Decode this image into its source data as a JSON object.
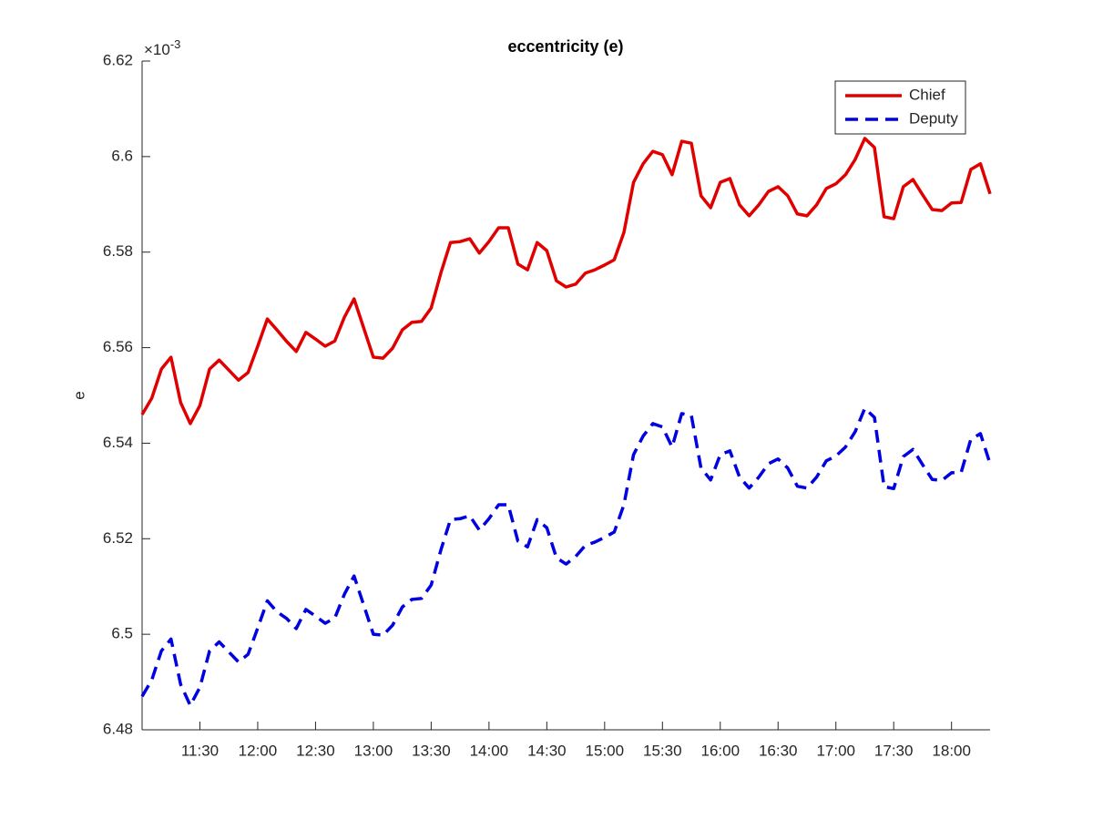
{
  "chart_data": {
    "type": "line",
    "title": "eccentricity (e)",
    "ylabel": "e",
    "y_multiplier": {
      "base": "×10",
      "exponent": "-3"
    },
    "xlim": [
      "11:00",
      "18:20"
    ],
    "xticks": [
      "11:30",
      "12:00",
      "12:30",
      "13:00",
      "13:30",
      "14:00",
      "14:30",
      "15:00",
      "15:30",
      "16:00",
      "16:30",
      "17:00",
      "17:30",
      "18:00"
    ],
    "ylim": [
      6.48,
      6.62
    ],
    "yticks": [
      6.48,
      6.5,
      6.52,
      6.54,
      6.56,
      6.58,
      6.6,
      6.62
    ],
    "grid": false,
    "legend": "northeast",
    "x": [
      "11:00",
      "11:05",
      "11:10",
      "11:15",
      "11:20",
      "11:25",
      "11:30",
      "11:35",
      "11:40",
      "11:45",
      "11:50",
      "11:55",
      "12:00",
      "12:05",
      "12:10",
      "12:15",
      "12:20",
      "12:25",
      "12:30",
      "12:35",
      "12:40",
      "12:45",
      "12:50",
      "12:55",
      "13:00",
      "13:05",
      "13:10",
      "13:15",
      "13:20",
      "13:25",
      "13:30",
      "13:35",
      "13:40",
      "13:45",
      "13:50",
      "13:55",
      "14:00",
      "14:05",
      "14:10",
      "14:15",
      "14:20",
      "14:25",
      "14:30",
      "14:35",
      "14:40",
      "14:45",
      "14:50",
      "14:55",
      "15:00",
      "15:05",
      "15:10",
      "15:15",
      "15:20",
      "15:25",
      "15:30",
      "15:35",
      "15:40",
      "15:45",
      "15:50",
      "15:55",
      "16:00",
      "16:05",
      "16:10",
      "16:15",
      "16:20",
      "16:25",
      "16:30",
      "16:35",
      "16:40",
      "16:45",
      "16:50",
      "16:55",
      "17:00",
      "17:05",
      "17:10",
      "17:15",
      "17:20",
      "17:25",
      "17:30",
      "17:35",
      "17:40",
      "17:45",
      "17:50",
      "17:55",
      "18:00",
      "18:05",
      "18:10",
      "18:15",
      "18:20"
    ],
    "series": [
      {
        "name": "Chief",
        "color": "#e00000",
        "linestyle": "solid",
        "values": [
          6.546,
          6.5494,
          6.5555,
          6.558,
          6.5485,
          6.5441,
          6.5479,
          6.5555,
          6.5574,
          6.5553,
          6.5532,
          6.5548,
          6.5603,
          6.566,
          6.5637,
          6.5613,
          6.5592,
          6.5632,
          6.5618,
          6.5603,
          6.5614,
          6.5664,
          6.5702,
          6.5641,
          6.558,
          6.5578,
          6.5599,
          6.5637,
          6.5653,
          6.5655,
          6.5683,
          6.5756,
          6.582,
          6.5822,
          6.5828,
          6.5798,
          6.5822,
          6.5851,
          6.5851,
          6.5775,
          6.5763,
          6.582,
          6.5803,
          6.574,
          6.5727,
          6.5733,
          6.5756,
          6.5763,
          6.5773,
          6.5784,
          6.5841,
          6.5946,
          6.5985,
          6.6011,
          6.6004,
          6.5962,
          6.6032,
          6.6028,
          6.5918,
          6.5893,
          6.5946,
          6.5954,
          6.5899,
          6.5876,
          6.5899,
          6.5927,
          6.5937,
          6.5918,
          6.588,
          6.5876,
          6.5899,
          6.5933,
          6.5943,
          6.5962,
          6.5994,
          6.6038,
          6.6019,
          6.5874,
          6.587,
          6.5937,
          6.5952,
          6.592,
          6.5889,
          6.5887,
          6.5903,
          6.5904,
          6.5973,
          6.5985,
          6.5922
        ]
      },
      {
        "name": "Deputy",
        "color": "#0000e0",
        "linestyle": "dashed",
        "values": [
          6.487,
          6.4904,
          6.4965,
          6.499,
          6.4895,
          6.4851,
          6.4889,
          6.4965,
          6.4984,
          6.4963,
          6.4942,
          6.4958,
          6.5013,
          6.507,
          6.5047,
          6.5033,
          6.5012,
          6.5052,
          6.5038,
          6.5023,
          6.5034,
          6.5084,
          6.5122,
          6.5061,
          6.5,
          6.4998,
          6.5019,
          6.5057,
          6.5073,
          6.5075,
          6.5103,
          6.5176,
          6.524,
          6.5242,
          6.5248,
          6.5218,
          6.5242,
          6.5271,
          6.5271,
          6.5195,
          6.5183,
          6.524,
          6.5223,
          6.516,
          6.5147,
          6.5163,
          6.5186,
          6.5193,
          6.5203,
          6.5214,
          6.5271,
          6.5376,
          6.5415,
          6.5441,
          6.5434,
          6.5392,
          6.5462,
          6.5458,
          6.5348,
          6.5323,
          6.5376,
          6.5384,
          6.5329,
          6.5306,
          6.5329,
          6.5357,
          6.5367,
          6.5348,
          6.531,
          6.5306,
          6.5329,
          6.5363,
          6.5373,
          6.5392,
          6.5424,
          6.5473,
          6.5454,
          6.5309,
          6.5305,
          6.5372,
          6.5387,
          6.5355,
          6.5324,
          6.5322,
          6.5338,
          6.5339,
          6.5408,
          6.542,
          6.5357
        ]
      }
    ]
  }
}
